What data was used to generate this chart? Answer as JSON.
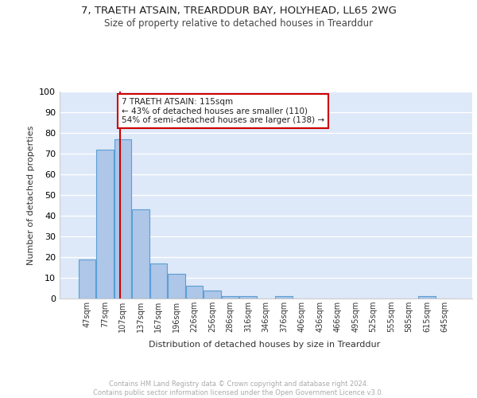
{
  "title1": "7, TRAETH ATSAIN, TREARDDUR BAY, HOLYHEAD, LL65 2WG",
  "title2": "Size of property relative to detached houses in Trearddur",
  "xlabel": "Distribution of detached houses by size in Trearddur",
  "ylabel": "Number of detached properties",
  "categories": [
    "47sqm",
    "77sqm",
    "107sqm",
    "137sqm",
    "167sqm",
    "196sqm",
    "226sqm",
    "256sqm",
    "286sqm",
    "316sqm",
    "346sqm",
    "376sqm",
    "406sqm",
    "436sqm",
    "466sqm",
    "495sqm",
    "525sqm",
    "555sqm",
    "585sqm",
    "615sqm",
    "645sqm"
  ],
  "values": [
    19,
    72,
    77,
    43,
    17,
    12,
    6,
    4,
    1,
    1,
    0,
    1,
    0,
    0,
    0,
    0,
    0,
    0,
    0,
    1,
    0
  ],
  "bar_color": "#aec6e8",
  "bar_edge_color": "#5a9fd4",
  "bg_color": "#dde8f8",
  "grid_color": "#ffffff",
  "vline_color": "#cc0000",
  "annotation_text": "7 TRAETH ATSAIN: 115sqm\n← 43% of detached houses are smaller (110)\n54% of semi-detached houses are larger (138) →",
  "annotation_box_color": "#ffffff",
  "annotation_box_edge": "#cc0000",
  "ylim": [
    0,
    100
  ],
  "footer": "Contains HM Land Registry data © Crown copyright and database right 2024.\nContains public sector information licensed under the Open Government Licence v3.0.",
  "footer_color": "#aaaaaa"
}
